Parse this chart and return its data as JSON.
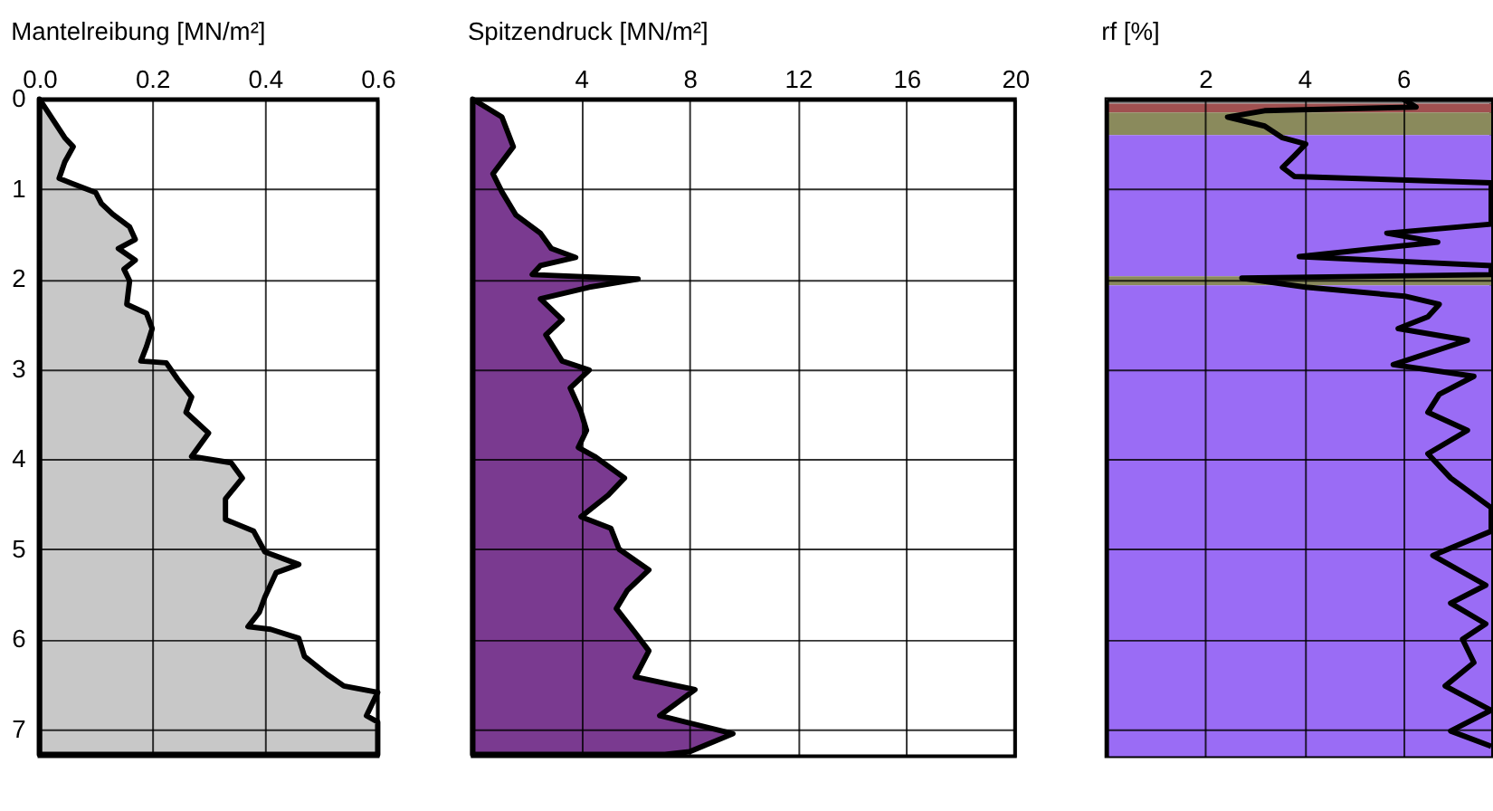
{
  "chart_data": [
    {
      "type": "area",
      "orientation": "horizontal",
      "title": "Mantelreibung [MN/m²]",
      "xlim": [
        0,
        0.6
      ],
      "xticks": [
        {
          "value": 0,
          "label": "0.0"
        },
        {
          "value": 0.2,
          "label": "0.2"
        },
        {
          "value": 0.4,
          "label": "0.4"
        },
        {
          "value": 0.6,
          "label": "0.6"
        }
      ],
      "ylim": [
        7.3,
        0
      ],
      "yticks": [
        0,
        1,
        2,
        3,
        4,
        5,
        6,
        7
      ],
      "grid": true,
      "series": [
        {
          "color": "#c8c8c8",
          "values": [
            0,
            0.045,
            0.06,
            0.045,
            0.035,
            0.055,
            0.1,
            0.11,
            0.13,
            0.16,
            0.17,
            0.14,
            0.17,
            0.15,
            0.16,
            0.155,
            0.19,
            0.2,
            0.19,
            0.18,
            0.225,
            0.245,
            0.27,
            0.26,
            0.3,
            0.27,
            0.34,
            0.36,
            0.33,
            0.33,
            0.38,
            0.4,
            0.46,
            0.42,
            0.4,
            0.39,
            0.37,
            0.41,
            0.46,
            0.47,
            0.51,
            0.54,
            0.6,
            0.58,
            0.6,
            0.6
          ],
          "x": [
            0,
            0.43,
            0.53,
            0.7,
            0.88,
            0.93,
            1.04,
            1.16,
            1.28,
            1.42,
            1.56,
            1.66,
            1.79,
            1.89,
            2.02,
            2.28,
            2.38,
            2.55,
            2.75,
            2.91,
            2.93,
            3.11,
            3.31,
            3.48,
            3.71,
            3.97,
            4.04,
            4.21,
            4.44,
            4.67,
            4.8,
            5.03,
            5.17,
            5.26,
            5.53,
            5.7,
            5.86,
            5.89,
            5.99,
            6.19,
            6.39,
            6.52,
            6.59,
            6.85,
            6.92,
            7.28
          ]
        }
      ]
    },
    {
      "type": "area",
      "orientation": "horizontal",
      "title": "Spitzendruck [MN/m²]",
      "xlim": [
        0,
        20
      ],
      "xticks": [
        4,
        8,
        12,
        16,
        20
      ],
      "ylim": [
        7.3,
        0
      ],
      "yticks": [
        0,
        1,
        2,
        3,
        4,
        5,
        6,
        7
      ],
      "grid": true,
      "tick_labels": "x",
      "series": [
        {
          "color": "#7a3a90",
          "values": [
            0,
            1.08,
            1.5,
            0.75,
            1.08,
            1.6,
            2.5,
            2.9,
            3.8,
            2.5,
            2.2,
            6.1,
            4.3,
            2.5,
            3.3,
            2.7,
            3.3,
            4.3,
            3.6,
            4.0,
            4.2,
            3.9,
            4.5,
            5.6,
            5.0,
            4.0,
            5.1,
            5.4,
            6.5,
            5.7,
            5.3,
            6.0,
            6.5,
            6.0,
            8.2,
            6.9,
            9.6,
            8.0,
            7.1
          ],
          "x": [
            0,
            0.2,
            0.53,
            0.83,
            1.03,
            1.29,
            1.49,
            1.66,
            1.76,
            1.85,
            1.95,
            2.0,
            2.09,
            2.22,
            2.45,
            2.62,
            2.91,
            3.01,
            3.21,
            3.48,
            3.68,
            3.87,
            3.97,
            4.21,
            4.4,
            4.64,
            4.77,
            5.0,
            5.23,
            5.46,
            5.66,
            5.93,
            6.13,
            6.42,
            6.56,
            6.85,
            7.05,
            7.25,
            7.28
          ]
        }
      ]
    },
    {
      "type": "line",
      "title": "rf [%]",
      "xlim": [
        0,
        7.78
      ],
      "xticks": [
        2,
        4,
        6
      ],
      "ylim": [
        7.3,
        0
      ],
      "yticks": [
        0,
        1,
        2,
        3,
        4,
        5,
        6,
        7
      ],
      "grid": true,
      "tick_labels": "x",
      "bands": [
        {
          "axis": "y",
          "from": 0,
          "to": 0.05,
          "color": "#808080"
        },
        {
          "axis": "y",
          "from": 0.05,
          "to": 0.15,
          "color": "#a05050"
        },
        {
          "axis": "y",
          "from": 0.15,
          "to": 0.4,
          "color": "#8a8a5c"
        },
        {
          "axis": "y",
          "from": 0.4,
          "to": 1.97,
          "color": "#9a6cf5"
        },
        {
          "axis": "y",
          "from": 1.97,
          "to": 2.07,
          "color": "#8a8a5c"
        },
        {
          "axis": "y",
          "from": 2.07,
          "to": 7.3,
          "color": "#9a6cf5"
        }
      ],
      "series": [
        {
          "color": "#000000",
          "x": [
            6.0,
            6.26,
            3.2,
            2.45,
            3.2,
            3.56,
            4.03,
            3.8,
            3.56,
            3.8,
            7.78,
            7.78,
            5.67,
            6.7,
            3.9,
            7.78,
            7.78,
            2.74,
            4.03,
            6.03,
            6.73,
            6.5,
            5.9,
            7.3,
            5.8,
            7.43,
            6.73,
            6.5,
            7.3,
            6.5,
            6.96,
            7.78,
            7.78,
            6.6,
            7.67,
            6.96,
            7.67,
            7.2,
            7.43,
            6.85,
            7.78,
            6.96,
            7.78
          ],
          "values": [
            0,
            0.09,
            0.13,
            0.2,
            0.3,
            0.43,
            0.5,
            0.63,
            0.76,
            0.86,
            0.93,
            1.39,
            1.49,
            1.59,
            1.75,
            1.85,
            1.95,
            1.99,
            2.09,
            2.19,
            2.28,
            2.42,
            2.55,
            2.68,
            2.95,
            3.08,
            3.28,
            3.48,
            3.68,
            3.94,
            4.21,
            4.54,
            4.8,
            5.07,
            5.4,
            5.6,
            5.83,
            6.0,
            6.26,
            6.52,
            6.79,
            7.02,
            7.19
          ]
        }
      ]
    }
  ]
}
